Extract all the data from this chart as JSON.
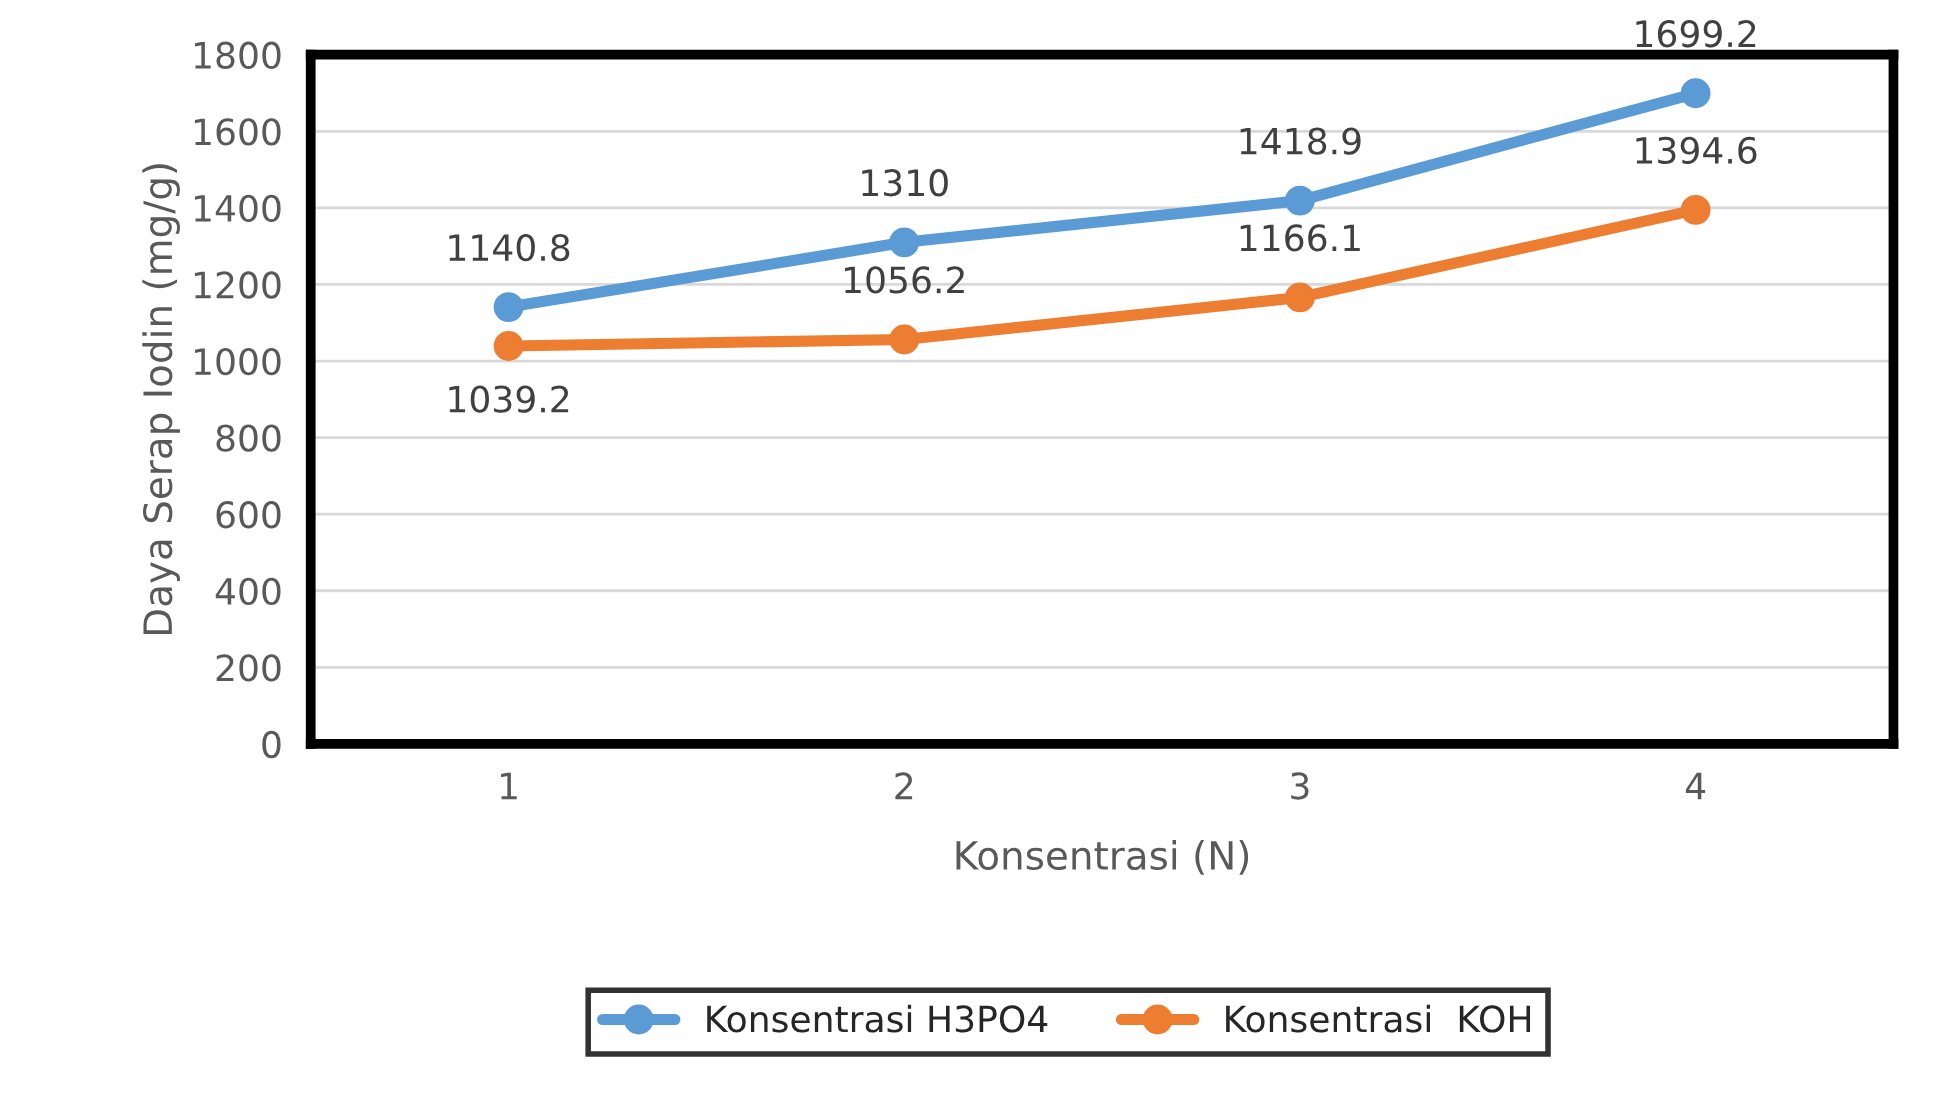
{
  "chart_data": {
    "type": "line",
    "xlabel": "Konsentrasi (N)",
    "ylabel": "Daya Serap Iodin (mg/g)",
    "categories": [
      "1",
      "2",
      "3",
      "4"
    ],
    "series": [
      {
        "name": "Konsentrasi H3PO4",
        "color": "#5b9bd5",
        "values": [
          1140.8,
          1310,
          1418.9,
          1699.2
        ]
      },
      {
        "name": "Konsentrasi  KOH",
        "color": "#ed7d31",
        "values": [
          1039.2,
          1056.2,
          1166.1,
          1394.6
        ]
      }
    ],
    "ylim": [
      0,
      1800
    ],
    "yticks": [
      0,
      200,
      400,
      600,
      800,
      1000,
      1200,
      1400,
      1600,
      1800
    ],
    "grid": "y",
    "legend": "bottom",
    "marker": "circle",
    "line_style": "solid",
    "data_labels": true
  }
}
